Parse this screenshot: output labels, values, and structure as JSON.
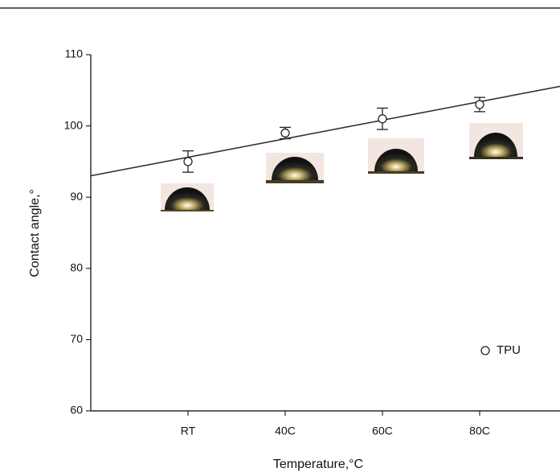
{
  "chart_data": {
    "type": "scatter",
    "x_label": "Temperature,°C",
    "y_label": "Contact angle,°",
    "categories": [
      "RT",
      "40C",
      "60C",
      "80C"
    ],
    "series": [
      {
        "name": "TPU",
        "color": "#222222",
        "values": [
          95,
          99,
          101,
          103
        ],
        "errors": [
          1.5,
          0.8,
          1.5,
          1.0
        ]
      }
    ],
    "ylim": [
      60,
      110
    ],
    "yticks": [
      60,
      70,
      80,
      90,
      100,
      110
    ],
    "fit_line": true,
    "legend": "lower right",
    "grid": false
  }
}
